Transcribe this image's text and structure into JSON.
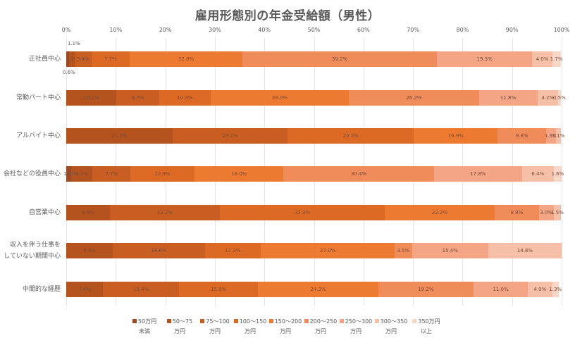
{
  "chart_data": {
    "type": "bar",
    "orientation": "horizontal",
    "stacked": "percent",
    "title": "雇用形態別の年金受給額（男性）",
    "xlabel": "",
    "ylabel": "",
    "xlim": [
      0,
      100
    ],
    "x_ticks": [
      "0%",
      "10%",
      "20%",
      "30%",
      "40%",
      "50%",
      "60%",
      "70%",
      "80%",
      "90%",
      "100%"
    ],
    "grid": true,
    "legend_position": "bottom",
    "categories": [
      "正社員中心",
      "常勤パート中心",
      "アルバイト中心",
      "会社などの役員中心",
      "自営業中心",
      "収入を伴う仕事をしていない期間中心",
      "中間的な経歴"
    ],
    "series": [
      {
        "name": "50万円未満",
        "color": "#9c4a23",
        "values": [
          0.6,
          null,
          null,
          1.0,
          null,
          null,
          null
        ]
      },
      {
        "name": "50〜75万円",
        "color": "#b5531f",
        "values": [
          1.1,
          10.1,
          21.5,
          4.3,
          8.8,
          9.4,
          7.4
        ]
      },
      {
        "name": "75〜100万円",
        "color": "#c85e21",
        "values": [
          3.4,
          8.7,
          23.2,
          7.7,
          22.2,
          18.6,
          15.4
        ]
      },
      {
        "name": "100〜150万円",
        "color": "#dc6a25",
        "values": [
          7.7,
          10.3,
          25.5,
          12.9,
          33.3,
          11.3,
          15.9
        ]
      },
      {
        "name": "150〜200万円",
        "color": "#ec7a30",
        "values": [
          22.8,
          28.0,
          16.9,
          18.0,
          22.2,
          27.0,
          24.3
        ]
      },
      {
        "name": "200〜250万円",
        "color": "#ef8c5a",
        "values": [
          39.2,
          26.2,
          9.8,
          30.4,
          8.9,
          3.5,
          19.2
        ]
      },
      {
        "name": "250〜300万円",
        "color": "#f3a585",
        "values": [
          19.3,
          11.8,
          1.9,
          17.8,
          3.0,
          15.4,
          11.0
        ]
      },
      {
        "name": "300〜350万円",
        "color": "#f6c0a8",
        "values": [
          4.0,
          4.2,
          1.1,
          6.4,
          1.5,
          14.8,
          4.9
        ]
      },
      {
        "name": "350万円以上",
        "color": "#f8d6c8",
        "values": [
          1.7,
          0.5,
          null,
          1.6,
          null,
          null,
          1.3
        ]
      }
    ]
  },
  "title": "雇用形態別の年金受給額（男性）",
  "axis": {
    "ticks": [
      "0%",
      "10%",
      "20%",
      "30%",
      "40%",
      "50%",
      "60%",
      "70%",
      "80%",
      "90%",
      "100%"
    ]
  },
  "rows": [
    {
      "label": "正社員中心",
      "label_lines": [
        "正社員中心"
      ]
    },
    {
      "label": "常勤パート中心",
      "label_lines": [
        "常勤パート中心"
      ]
    },
    {
      "label": "アルバイト中心",
      "label_lines": [
        "アルバイト中心"
      ]
    },
    {
      "label": "会社などの役員中心",
      "label_lines": [
        "会社などの役員中心"
      ]
    },
    {
      "label": "自営業中心",
      "label_lines": [
        "自営業中心"
      ]
    },
    {
      "label": "収入を伴う仕事をしていない期間中心",
      "label_lines": [
        "収入を伴う仕事を",
        "していない期間中心"
      ]
    },
    {
      "label": "中間的な経歴",
      "label_lines": [
        "中間的な経歴"
      ]
    }
  ],
  "legend": [
    {
      "line1": "50万円",
      "line2": "未満",
      "color": "#9c4a23"
    },
    {
      "line1": "50〜75",
      "line2": "万円",
      "color": "#b5531f"
    },
    {
      "line1": "75〜100",
      "line2": "万円",
      "color": "#c85e21"
    },
    {
      "line1": "100〜150",
      "line2": "万円",
      "color": "#dc6a25"
    },
    {
      "line1": "150〜200",
      "line2": "万円",
      "color": "#ec7a30"
    },
    {
      "line1": "200〜250",
      "line2": "万円",
      "color": "#ef8c5a"
    },
    {
      "line1": "250〜300",
      "line2": "万円",
      "color": "#f3a585"
    },
    {
      "line1": "300〜350",
      "line2": "万円",
      "color": "#f6c0a8"
    },
    {
      "line1": "350万円",
      "line2": "以上",
      "color": "#f8d6c8"
    }
  ]
}
